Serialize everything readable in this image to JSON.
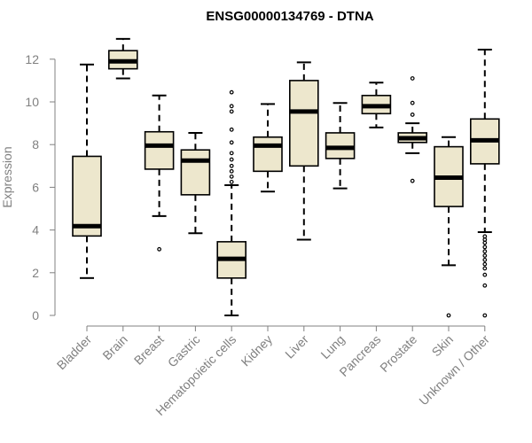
{
  "chart_data": {
    "type": "boxplot",
    "title": "ENSG00000134769 - DTNA",
    "xlabel": "",
    "ylabel": "Expression",
    "ylim": [
      0,
      12
    ],
    "yticks": [
      0,
      2,
      4,
      6,
      8,
      10,
      12
    ],
    "colors": {
      "box_fill": "#ede7cd",
      "stroke": "#000000",
      "axis": "#808080",
      "title": "#000000"
    },
    "categories": [
      "Bladder",
      "Brain",
      "Breast",
      "Gastric",
      "Hematopoietic cells",
      "Kidney",
      "Liver",
      "Lung",
      "Pancreas",
      "Prostate",
      "Skin",
      "Unknown / Other"
    ],
    "boxes": [
      {
        "name": "Bladder",
        "whisker_low": 1.75,
        "q1": 3.72,
        "median": 4.18,
        "q3": 7.45,
        "whisker_high": 11.75,
        "outliers": []
      },
      {
        "name": "Brain",
        "whisker_low": 11.1,
        "q1": 11.55,
        "median": 11.9,
        "q3": 12.4,
        "whisker_high": 12.95,
        "outliers": []
      },
      {
        "name": "Breast",
        "whisker_low": 4.65,
        "q1": 6.85,
        "median": 7.95,
        "q3": 8.6,
        "whisker_high": 10.3,
        "outliers": [
          3.1
        ]
      },
      {
        "name": "Gastric",
        "whisker_low": 3.85,
        "q1": 5.65,
        "median": 7.25,
        "q3": 7.75,
        "whisker_high": 8.55,
        "outliers": []
      },
      {
        "name": "Hematopoietic cells",
        "whisker_low": 0.0,
        "q1": 1.75,
        "median": 2.65,
        "q3": 3.45,
        "whisker_high": 6.1,
        "outliers": [
          6.25,
          6.5,
          6.75,
          7.0,
          7.3,
          7.6,
          8.1,
          8.7,
          9.55,
          9.8,
          10.45
        ]
      },
      {
        "name": "Kidney",
        "whisker_low": 5.8,
        "q1": 6.75,
        "median": 7.95,
        "q3": 8.35,
        "whisker_high": 9.9,
        "outliers": []
      },
      {
        "name": "Liver",
        "whisker_low": 3.55,
        "q1": 7.0,
        "median": 9.55,
        "q3": 11.0,
        "whisker_high": 11.85,
        "outliers": []
      },
      {
        "name": "Lung",
        "whisker_low": 5.95,
        "q1": 7.35,
        "median": 7.85,
        "q3": 8.55,
        "whisker_high": 9.95,
        "outliers": []
      },
      {
        "name": "Pancreas",
        "whisker_low": 8.8,
        "q1": 9.45,
        "median": 9.8,
        "q3": 10.3,
        "whisker_high": 10.9,
        "outliers": []
      },
      {
        "name": "Prostate",
        "whisker_low": 7.6,
        "q1": 8.1,
        "median": 8.3,
        "q3": 8.55,
        "whisker_high": 9.0,
        "outliers": [
          6.3,
          9.4,
          9.95,
          11.1
        ]
      },
      {
        "name": "Skin",
        "whisker_low": 2.35,
        "q1": 5.1,
        "median": 6.45,
        "q3": 7.9,
        "whisker_high": 8.35,
        "outliers": [
          0.0
        ]
      },
      {
        "name": "Unknown / Other",
        "whisker_low": 3.9,
        "q1": 7.1,
        "median": 8.2,
        "q3": 9.2,
        "whisker_high": 12.45,
        "outliers": [
          0.0,
          1.4,
          1.9,
          2.2,
          2.4,
          2.6,
          2.8,
          3.0,
          3.2,
          3.4,
          3.55,
          3.7
        ]
      }
    ]
  }
}
